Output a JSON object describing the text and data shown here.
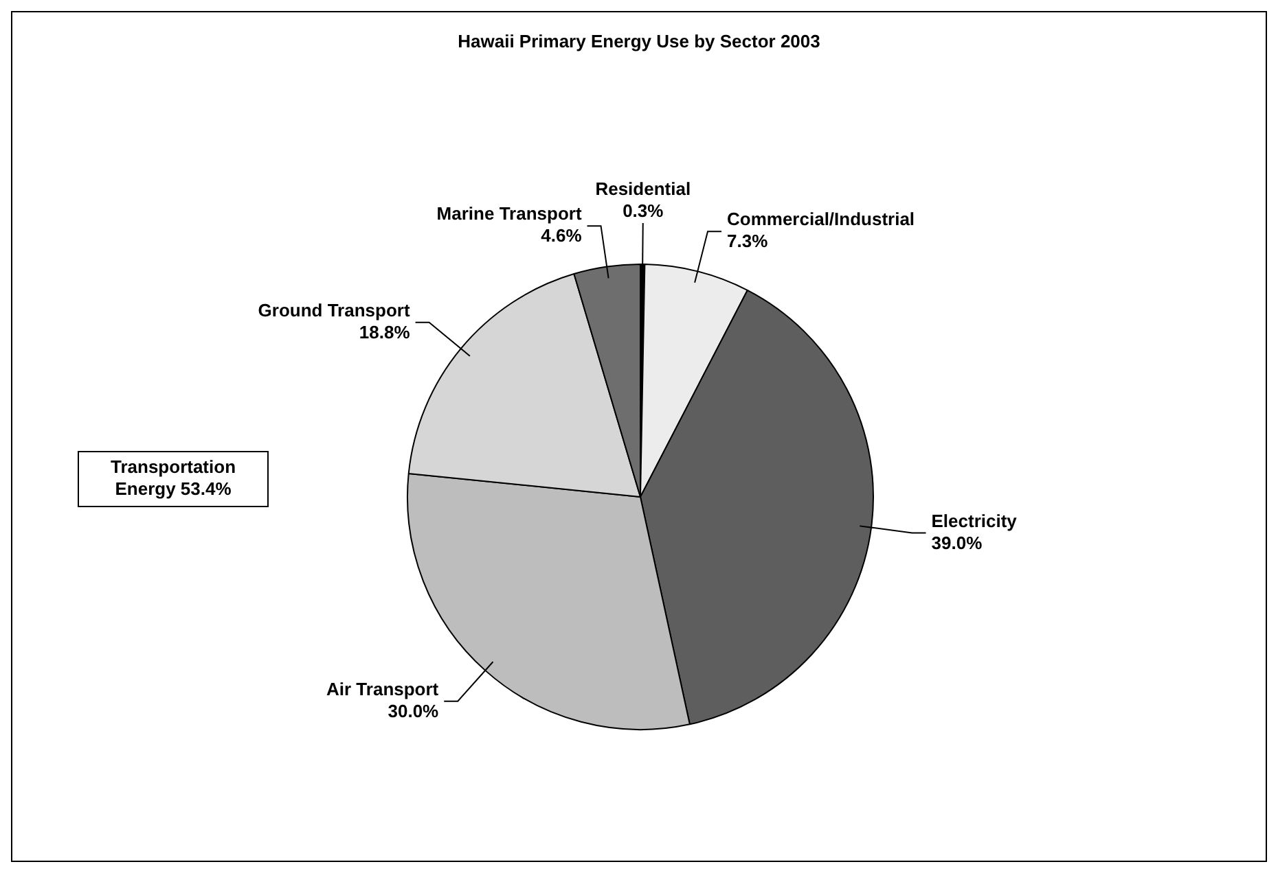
{
  "chart_data": {
    "type": "pie",
    "title": "Hawaii Primary Energy Use by Sector 2003",
    "categories": [
      "Residential",
      "Commercial/Industrial",
      "Electricity",
      "Air Transport",
      "Ground Transport",
      "Marine Transport"
    ],
    "values": [
      0.3,
      7.3,
      39.0,
      30.0,
      18.8,
      4.6
    ],
    "value_labels": [
      "0.3%",
      "7.3%",
      "39.0%",
      "30.0%",
      "18.8%",
      "4.6%"
    ],
    "colors": [
      "#000000",
      "#ececec",
      "#5e5e5e",
      "#bdbdbd",
      "#d6d6d6",
      "#6e6e6e"
    ],
    "legend": false,
    "annotations": [
      "Transportation Energy 53.4%"
    ]
  }
}
